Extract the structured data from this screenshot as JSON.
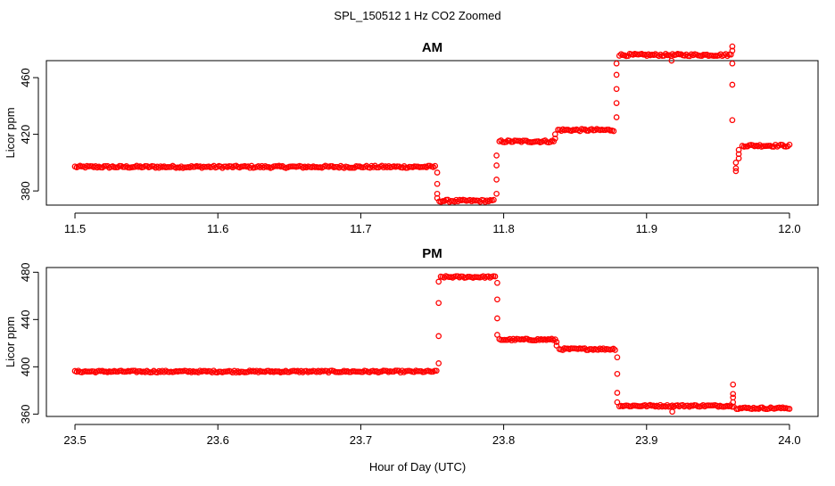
{
  "figure": {
    "title": "SPL_150512  1 Hz CO2 Zoomed",
    "xlabel": "Hour of Day (UTC)"
  },
  "colors": {
    "points": "#ff0000",
    "axes": "#000000"
  },
  "chart_data": [
    {
      "type": "scatter",
      "title": "AM",
      "xlabel": "",
      "ylabel": "Licor ppm",
      "xlim": [
        11.48,
        12.02
      ],
      "ylim": [
        370,
        472
      ],
      "xticks": [
        11.5,
        11.6,
        11.7,
        11.8,
        11.9,
        12.0
      ],
      "xtick_labels": [
        "11.5",
        "11.6",
        "11.7",
        "11.8",
        "11.9",
        "12.0"
      ],
      "yticks": [
        380,
        420,
        460
      ],
      "ytick_labels": [
        "380",
        "420",
        "460"
      ],
      "grid": false,
      "segments": [
        {
          "x_start": 11.5,
          "x_end": 11.752,
          "y": 397
        },
        {
          "x_start": 11.755,
          "x_end": 11.793,
          "y": 373
        },
        {
          "x_start": 11.797,
          "x_end": 11.835,
          "y": 415
        },
        {
          "x_start": 11.838,
          "x_end": 11.877,
          "y": 423
        },
        {
          "x_start": 11.881,
          "x_end": 11.959,
          "y": 476
        },
        {
          "x_start": 11.967,
          "x_end": 12.0,
          "y": 412
        }
      ],
      "transitions": [
        {
          "x": 11.7535,
          "y": [
            393,
            385,
            378,
            375
          ]
        },
        {
          "x": 11.795,
          "y": [
            378,
            388,
            398,
            405
          ]
        },
        {
          "x": 11.836,
          "y": [
            417,
            420
          ]
        },
        {
          "x": 11.879,
          "y": [
            432,
            442,
            452,
            462,
            470
          ]
        },
        {
          "x": 11.9175,
          "y": [
            472
          ]
        },
        {
          "x": 11.96,
          "y": [
            482,
            479,
            470,
            455,
            430
          ]
        },
        {
          "x": 11.9625,
          "y": [
            400,
            396,
            394
          ]
        },
        {
          "x": 11.9645,
          "y": [
            403,
            406,
            409
          ]
        }
      ]
    },
    {
      "type": "scatter",
      "title": "PM",
      "xlabel": "",
      "ylabel": "Licor ppm",
      "xlim": [
        23.48,
        24.02
      ],
      "ylim": [
        358,
        484
      ],
      "xticks": [
        23.5,
        23.6,
        23.7,
        23.8,
        23.9,
        24.0
      ],
      "xtick_labels": [
        "23.5",
        "23.6",
        "23.7",
        "23.8",
        "23.9",
        "24.0"
      ],
      "yticks": [
        360,
        400,
        440,
        480
      ],
      "ytick_labels": [
        "360",
        "400",
        "440",
        "480"
      ],
      "grid": false,
      "segments": [
        {
          "x_start": 23.5,
          "x_end": 23.753,
          "y": 396
        },
        {
          "x_start": 23.756,
          "x_end": 23.794,
          "y": 476
        },
        {
          "x_start": 23.797,
          "x_end": 23.836,
          "y": 423
        },
        {
          "x_start": 23.839,
          "x_end": 23.878,
          "y": 415
        },
        {
          "x_start": 23.881,
          "x_end": 23.961,
          "y": 367
        },
        {
          "x_start": 23.963,
          "x_end": 24.0,
          "y": 365
        }
      ],
      "transitions": [
        {
          "x": 23.7545,
          "y": [
            403,
            426,
            454,
            472
          ]
        },
        {
          "x": 23.7955,
          "y": [
            471,
            457,
            441,
            427
          ]
        },
        {
          "x": 23.837,
          "y": [
            421,
            418
          ]
        },
        {
          "x": 23.8795,
          "y": [
            408,
            394,
            378,
            370
          ]
        },
        {
          "x": 23.918,
          "y": [
            362
          ]
        },
        {
          "x": 23.9605,
          "y": [
            385,
            377,
            374,
            370
          ]
        }
      ]
    }
  ]
}
